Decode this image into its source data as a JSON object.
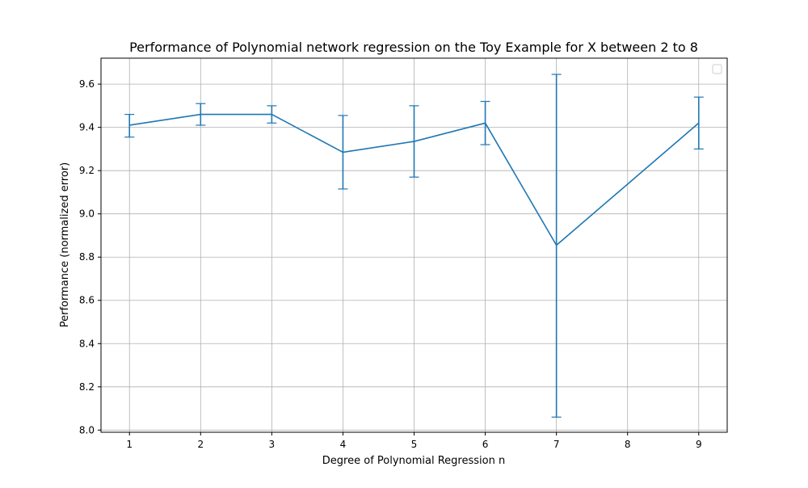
{
  "chart_data": {
    "type": "line",
    "title": "Performance of Polynomial network regression on the Toy Example for X between 2 to 8",
    "xlabel": "Degree of Polynomial Regression n",
    "ylabel": "Performance (normalized error)",
    "xlim": [
      0.6,
      9.4
    ],
    "ylim": [
      7.99,
      9.72
    ],
    "x_ticks": [
      1,
      2,
      3,
      4,
      5,
      6,
      7,
      8,
      9
    ],
    "x_tick_labels": [
      "1",
      "2",
      "3",
      "4",
      "5",
      "6",
      "7",
      "8",
      "9"
    ],
    "y_ticks": [
      8.0,
      8.2,
      8.4,
      8.6,
      8.8,
      9.0,
      9.2,
      9.4,
      9.6
    ],
    "y_tick_labels": [
      "8.0",
      "8.2",
      "8.4",
      "8.6",
      "8.8",
      "9.0",
      "9.2",
      "9.4",
      "9.6"
    ],
    "grid": true,
    "legend": "top-right",
    "legend_entries": [],
    "series": [
      {
        "color": "#1f77b4",
        "points": [
          {
            "x": 1,
            "y": 9.41,
            "lower": 9.355,
            "upper": 9.46
          },
          {
            "x": 2,
            "y": 9.46,
            "lower": 9.41,
            "upper": 9.51
          },
          {
            "x": 3,
            "y": 9.46,
            "lower": 9.42,
            "upper": 9.5
          },
          {
            "x": 4,
            "y": 9.285,
            "lower": 9.115,
            "upper": 9.455
          },
          {
            "x": 5,
            "y": 9.335,
            "lower": 9.17,
            "upper": 9.5
          },
          {
            "x": 6,
            "y": 9.42,
            "lower": 9.32,
            "upper": 9.52
          },
          {
            "x": 7,
            "y": 8.855,
            "lower": 8.06,
            "upper": 9.645
          },
          {
            "x": 9,
            "y": 9.42,
            "lower": 9.3,
            "upper": 9.54
          }
        ]
      }
    ]
  }
}
